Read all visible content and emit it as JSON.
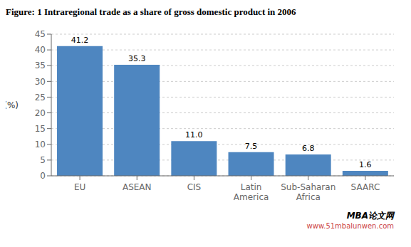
{
  "chart_data": {
    "type": "bar",
    "title": "Figure: 1 Intraregional trade as a share of gross domestic product in 2006",
    "categories": [
      "EU",
      "ASEAN",
      "CIS",
      "Latin\nAmerica",
      "Sub-Saharan\nAfrica",
      "SAARC"
    ],
    "values": [
      41.2,
      35.3,
      11.0,
      7.5,
      6.8,
      1.6
    ],
    "value_labels": [
      "41.2",
      "35.3",
      "11.0",
      "7.5",
      "6.8",
      "1.6"
    ],
    "data_labels": true,
    "color": "#4e86c0",
    "ylabel": "(%)",
    "ylim": [
      0,
      45
    ],
    "yticks": [
      0,
      5,
      10,
      15,
      20,
      25,
      30,
      35,
      40,
      45
    ],
    "grid": true,
    "annotations": [
      "MBA论文网",
      "www.51mbalunwen.com"
    ]
  }
}
